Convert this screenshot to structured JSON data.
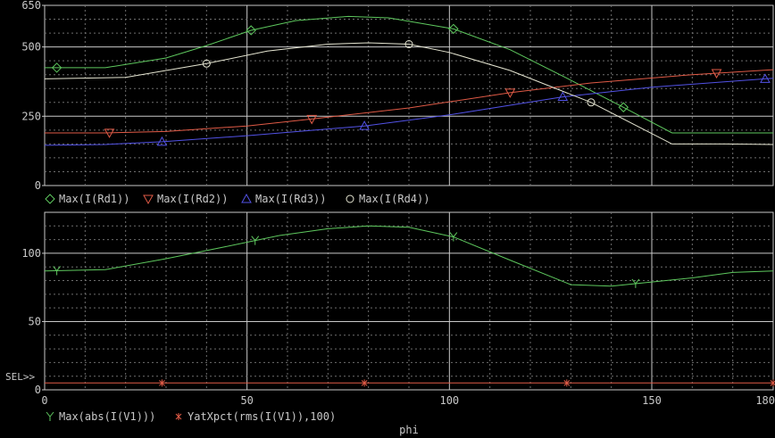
{
  "colors": {
    "background": "#000000",
    "frame": "#c8c8c8",
    "grid": "#6e6e6e",
    "text": "#c8c8c8"
  },
  "chart_data": [
    {
      "type": "line",
      "name": "top-panel",
      "xlim": [
        0,
        180
      ],
      "ylim": [
        0,
        650
      ],
      "yticks": [
        0,
        250,
        500,
        650
      ],
      "grid": true,
      "legend_placement": "bottom-left",
      "series": [
        {
          "name": "Max(I(Rd1))",
          "color": "#5ec85e",
          "marker": "diamond",
          "x": [
            0,
            15,
            30,
            40,
            51,
            62,
            75,
            85,
            101,
            115,
            130,
            142,
            155,
            168,
            180
          ],
          "y": [
            425,
            425,
            460,
            505,
            560,
            595,
            610,
            605,
            565,
            490,
            380,
            290,
            190,
            190,
            190
          ],
          "markers_x": [
            3,
            51,
            101,
            143
          ]
        },
        {
          "name": "Max(I(Rd2))",
          "color": "#e05a46",
          "marker": "triangle-down",
          "x": [
            0,
            15,
            30,
            50,
            66,
            90,
            115,
            135,
            160,
            180
          ],
          "y": [
            190,
            190,
            195,
            215,
            240,
            280,
            335,
            370,
            400,
            418
          ],
          "markers_x": [
            16,
            66,
            115,
            166
          ]
        },
        {
          "name": "Max(I(Rd3))",
          "color": "#5252e6",
          "marker": "triangle-up",
          "x": [
            0,
            15,
            29,
            50,
            79,
            100,
            128,
            150,
            178,
            180
          ],
          "y": [
            145,
            148,
            158,
            180,
            215,
            255,
            320,
            355,
            385,
            387
          ],
          "markers_x": [
            29,
            79,
            128,
            178
          ]
        },
        {
          "name": "Max(I(Rd4))",
          "color": "#e6e6d2",
          "marker": "circle",
          "x": [
            0,
            20,
            40,
            55,
            70,
            80,
            90,
            100,
            115,
            135,
            155,
            168,
            180
          ],
          "y": [
            385,
            390,
            440,
            485,
            510,
            515,
            510,
            480,
            415,
            300,
            150,
            150,
            148
          ],
          "markers_x": [
            40,
            90,
            135
          ]
        }
      ]
    },
    {
      "type": "line",
      "name": "bottom-panel",
      "xlim": [
        0,
        180
      ],
      "ylim": [
        0,
        130
      ],
      "yticks": [
        0,
        50,
        100
      ],
      "xticks": [
        0,
        50,
        100,
        150,
        180
      ],
      "xlabel": "phi",
      "selected_marker": "SEL>>",
      "grid": true,
      "legend_placement": "bottom-left",
      "series": [
        {
          "name": "Max(abs(I(V1)))",
          "color": "#5ec85e",
          "marker": "Y",
          "x": [
            0,
            15,
            30,
            45,
            58,
            70,
            80,
            90,
            101,
            115,
            130,
            140,
            150,
            160,
            170,
            180
          ],
          "y": [
            87,
            88,
            96,
            105,
            113,
            118,
            120,
            119,
            112,
            95,
            77,
            76,
            79,
            82,
            86,
            87
          ],
          "markers_x": [
            3,
            52,
            101,
            146
          ]
        },
        {
          "name": "YatXpct(rms(I(V1)),100)",
          "color": "#e05a46",
          "marker": "asterisk",
          "x": [
            0,
            180
          ],
          "y": [
            5,
            5
          ],
          "markers_x": [
            29,
            79,
            129,
            180
          ]
        }
      ]
    }
  ]
}
